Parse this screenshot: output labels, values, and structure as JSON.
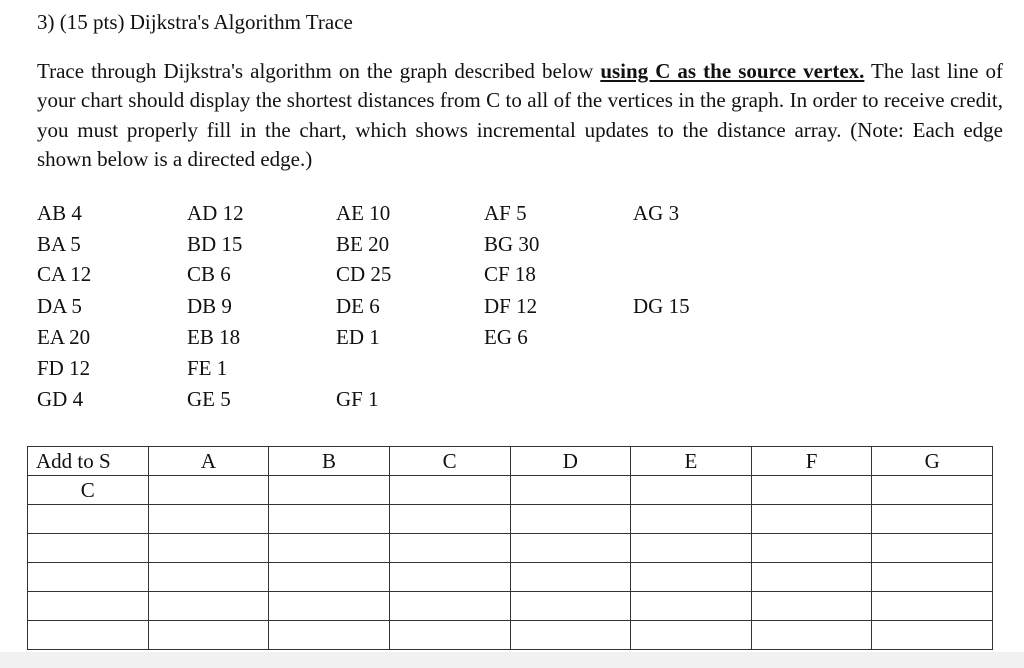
{
  "title": "3) (15 pts) Dijkstra's Algorithm Trace",
  "instructions": {
    "before": "Trace through Dijkstra's algorithm on the graph described below ",
    "emphasis": "using C as the source vertex.",
    "after": " The last line of your chart should display the shortest distances from C to all of the vertices in the graph. In order to receive credit, you must properly fill in the chart, which shows incremental updates to the distance array. (Note: Each edge shown below is a directed edge.)"
  },
  "edges": [
    [
      "AB 4",
      "AD 12",
      "AE 10",
      "AF 5",
      "AG 3"
    ],
    [
      "BA 5",
      "BD 15",
      "BE 20",
      "BG 30",
      ""
    ],
    [
      "CA 12",
      "CB 6",
      "CD 25",
      "CF 18",
      ""
    ],
    [
      "DA 5",
      "DB 9",
      "DE 6",
      "DF 12",
      "DG 15"
    ],
    [
      "EA 20",
      "EB 18",
      "ED 1",
      "EG 6",
      ""
    ],
    [
      "FD 12",
      "FE 1",
      "",
      "",
      ""
    ],
    [
      "GD 4",
      "GE 5",
      "GF 1",
      "",
      ""
    ]
  ],
  "table": {
    "headers": [
      "Add to S",
      "A",
      "B",
      "C",
      "D",
      "E",
      "F",
      "G"
    ],
    "rows": [
      [
        "C",
        "",
        "",
        "",
        "",
        "",
        "",
        ""
      ],
      [
        "",
        "",
        "",
        "",
        "",
        "",
        "",
        ""
      ],
      [
        "",
        "",
        "",
        "",
        "",
        "",
        "",
        ""
      ],
      [
        "",
        "",
        "",
        "",
        "",
        "",
        "",
        ""
      ],
      [
        "",
        "",
        "",
        "",
        "",
        "",
        "",
        ""
      ],
      [
        "",
        "",
        "",
        "",
        "",
        "",
        "",
        ""
      ]
    ]
  }
}
